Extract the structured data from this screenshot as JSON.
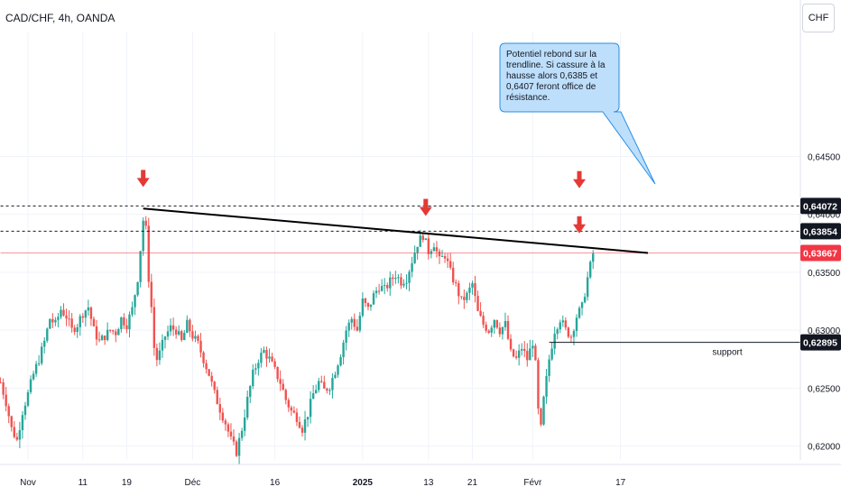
{
  "header": {
    "symbol": "CAD/CHF, 4h, OANDA",
    "currency_button": "CHF"
  },
  "chart_data": {
    "type": "candlestick",
    "title": "CAD/CHF, 4h, OANDA",
    "xlabel": "",
    "ylabel": "",
    "ylim": [
      0.6188,
      0.6557
    ],
    "y_ticks": [
      "0,62000",
      "0,62500",
      "0,63000",
      "0,63500",
      "0,64000",
      "0,64500"
    ],
    "y_tick_values": [
      0.62,
      0.625,
      0.63,
      0.635,
      0.64,
      0.645
    ],
    "x_ticks": [
      {
        "label": "Nov",
        "day": 0,
        "bold": false
      },
      {
        "label": "11",
        "day": 10,
        "bold": false
      },
      {
        "label": "19",
        "day": 18,
        "bold": false
      },
      {
        "label": "Déc",
        "day": 30,
        "bold": false
      },
      {
        "label": "16",
        "day": 45,
        "bold": false
      },
      {
        "label": "2025",
        "day": 61,
        "bold": true
      },
      {
        "label": "13",
        "day": 73,
        "bold": false
      },
      {
        "label": "21",
        "day": 81,
        "bold": false
      },
      {
        "label": "Févr",
        "day": 92,
        "bold": false
      },
      {
        "label": "17",
        "day": 108,
        "bold": false
      }
    ],
    "price_path": [
      [
        -5,
        0.6255
      ],
      [
        -4,
        0.6238
      ],
      [
        -3,
        0.6215
      ],
      [
        -2,
        0.6205
      ],
      [
        -1,
        0.623
      ],
      [
        0,
        0.6245
      ],
      [
        1,
        0.6262
      ],
      [
        2,
        0.6275
      ],
      [
        3,
        0.629
      ],
      [
        4,
        0.631
      ],
      [
        5,
        0.6305
      ],
      [
        6,
        0.6318
      ],
      [
        7,
        0.6312
      ],
      [
        8,
        0.63
      ],
      [
        9,
        0.6305
      ],
      [
        10,
        0.6315
      ],
      [
        11,
        0.632
      ],
      [
        12,
        0.63
      ],
      [
        13,
        0.629
      ],
      [
        14,
        0.6295
      ],
      [
        15,
        0.63
      ],
      [
        16,
        0.6298
      ],
      [
        17,
        0.631
      ],
      [
        18,
        0.6305
      ],
      [
        19,
        0.6318
      ],
      [
        20,
        0.6345
      ],
      [
        21,
        0.6395
      ],
      [
        21.6,
        0.6385
      ],
      [
        22,
        0.6345
      ],
      [
        22.5,
        0.632
      ],
      [
        23,
        0.6285
      ],
      [
        23.5,
        0.6275
      ],
      [
        24,
        0.628
      ],
      [
        25,
        0.6295
      ],
      [
        26,
        0.6302
      ],
      [
        27,
        0.63
      ],
      [
        28,
        0.629
      ],
      [
        29,
        0.6305
      ],
      [
        30,
        0.6295
      ],
      [
        31,
        0.6288
      ],
      [
        32,
        0.6275
      ],
      [
        33,
        0.6262
      ],
      [
        34,
        0.6245
      ],
      [
        35,
        0.6232
      ],
      [
        36,
        0.622
      ],
      [
        37,
        0.6205
      ],
      [
        38,
        0.6195
      ],
      [
        39,
        0.6215
      ],
      [
        40,
        0.624
      ],
      [
        41,
        0.6262
      ],
      [
        42,
        0.6275
      ],
      [
        43,
        0.6282
      ],
      [
        44,
        0.6275
      ],
      [
        45,
        0.6265
      ],
      [
        46,
        0.6255
      ],
      [
        47,
        0.624
      ],
      [
        48,
        0.623
      ],
      [
        49,
        0.6225
      ],
      [
        50,
        0.6215
      ],
      [
        51,
        0.6228
      ],
      [
        52,
        0.6245
      ],
      [
        53,
        0.6255
      ],
      [
        54,
        0.6248
      ],
      [
        55,
        0.6252
      ],
      [
        56,
        0.6265
      ],
      [
        57,
        0.628
      ],
      [
        58,
        0.63
      ],
      [
        59,
        0.631
      ],
      [
        60,
        0.63
      ],
      [
        61,
        0.6325
      ],
      [
        62,
        0.6318
      ],
      [
        63,
        0.633
      ],
      [
        64,
        0.6338
      ],
      [
        65,
        0.6335
      ],
      [
        66,
        0.6342
      ],
      [
        67,
        0.6348
      ],
      [
        68,
        0.6342
      ],
      [
        69,
        0.6345
      ],
      [
        70,
        0.636
      ],
      [
        71,
        0.6375
      ],
      [
        72,
        0.6382
      ],
      [
        73,
        0.6368
      ],
      [
        74,
        0.6375
      ],
      [
        75,
        0.636
      ],
      [
        76,
        0.6365
      ],
      [
        77,
        0.635
      ],
      [
        78,
        0.6338
      ],
      [
        79,
        0.6325
      ],
      [
        80,
        0.633
      ],
      [
        81,
        0.634
      ],
      [
        82,
        0.6315
      ],
      [
        83,
        0.6305
      ],
      [
        84,
        0.63
      ],
      [
        85,
        0.631
      ],
      [
        86,
        0.63
      ],
      [
        87,
        0.6305
      ],
      [
        88,
        0.628
      ],
      [
        89,
        0.6275
      ],
      [
        90,
        0.6285
      ],
      [
        91,
        0.6275
      ],
      [
        92,
        0.629
      ],
      [
        92.5,
        0.627
      ],
      [
        93,
        0.623
      ],
      [
        93.5,
        0.6215
      ],
      [
        94,
        0.624
      ],
      [
        95,
        0.6275
      ],
      [
        96,
        0.63
      ],
      [
        97,
        0.631
      ],
      [
        98,
        0.63
      ],
      [
        99,
        0.6295
      ],
      [
        100,
        0.6312
      ],
      [
        101,
        0.632
      ],
      [
        102,
        0.6345
      ],
      [
        103,
        0.6366
      ]
    ],
    "candle_start_day": -5,
    "candle_end_day": 103,
    "candle_step_days": 0.5,
    "volatility": 0.00085,
    "colors": {
      "up": "#26a69a",
      "down": "#ef5350"
    },
    "horizontal_levels": [
      {
        "value": 0.64072,
        "label": "0,64072",
        "style": "dashed",
        "color": "#131722",
        "from_day": -5
      },
      {
        "value": 0.63854,
        "label": "0,63854",
        "style": "dashed",
        "color": "#131722",
        "from_day": -5
      },
      {
        "value": 0.63667,
        "label": "0,63667",
        "style": "solid-thin",
        "color": "#f23645",
        "from_day": -5
      },
      {
        "value": 0.62895,
        "label": "0,62895",
        "style": "solid",
        "color": "#131722",
        "from_day": 95
      }
    ],
    "trendline": {
      "day1": 21,
      "value1": 0.6405,
      "day2": 113,
      "value2": 0.63667,
      "color": "#000000"
    },
    "arrows": [
      {
        "day": 21,
        "value": 0.6429
      },
      {
        "day": 72.5,
        "value": 0.6404
      },
      {
        "day": 100.5,
        "value": 0.6428
      },
      {
        "day": 100.5,
        "value": 0.6389
      }
    ],
    "annotations": {
      "support_label": "support",
      "callout": "Potentiel rebond sur la trendline. Si cassure à la hausse alors 0,6385 et 0,6407 feront office de résistance."
    }
  }
}
